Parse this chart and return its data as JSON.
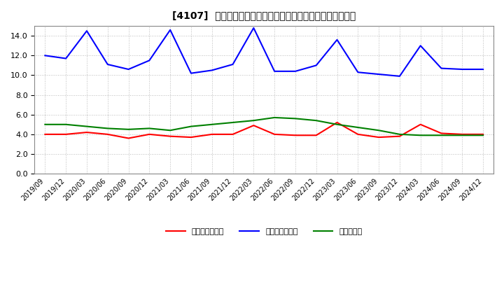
{
  "title": "[4107]  売上債権回転率、買入債務回転率、在庫回転率の推移",
  "x_labels": [
    "2019/09",
    "2019/12",
    "2020/03",
    "2020/06",
    "2020/09",
    "2020/12",
    "2021/03",
    "2021/06",
    "2021/09",
    "2021/12",
    "2022/03",
    "2022/06",
    "2022/09",
    "2022/12",
    "2023/03",
    "2023/06",
    "2023/09",
    "2023/12",
    "2024/03",
    "2024/06",
    "2024/09",
    "2024/12"
  ],
  "uriageSaiken": [
    4.0,
    4.0,
    4.2,
    4.0,
    3.6,
    4.0,
    3.8,
    3.7,
    4.0,
    4.0,
    4.9,
    4.0,
    3.9,
    3.9,
    5.2,
    4.0,
    3.7,
    3.8,
    5.0,
    4.1,
    4.0,
    4.0
  ],
  "kainyu": [
    12.0,
    11.7,
    14.5,
    11.1,
    10.6,
    11.5,
    14.6,
    10.2,
    10.5,
    11.1,
    14.8,
    10.4,
    10.4,
    11.0,
    13.6,
    10.3,
    10.1,
    9.9,
    13.0,
    10.7,
    10.6,
    10.6
  ],
  "zaiko": [
    5.0,
    5.0,
    4.8,
    4.6,
    4.5,
    4.6,
    4.4,
    4.8,
    5.0,
    5.2,
    5.4,
    5.7,
    5.6,
    5.4,
    5.0,
    4.7,
    4.4,
    4.0,
    3.9,
    3.9,
    3.9,
    3.9
  ],
  "legend_uriage": "売上債権回転率",
  "legend_kainyu": "買入債務回転率",
  "legend_zaiko": "在庫回転率",
  "ylim": [
    0,
    15.0
  ],
  "yticks": [
    0.0,
    2.0,
    4.0,
    6.0,
    8.0,
    10.0,
    12.0,
    14.0
  ],
  "color_uriage": "#ff0000",
  "color_kainyu": "#0000ff",
  "color_zaiko": "#008000",
  "background_color": "#ffffff",
  "grid_color": "#aaaaaa"
}
